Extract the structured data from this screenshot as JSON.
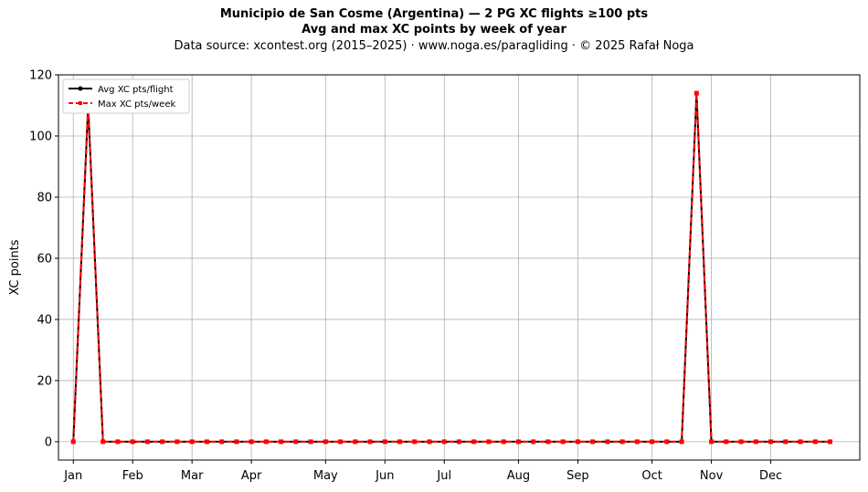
{
  "chart_data": {
    "type": "line",
    "title": "Municipio de San Cosme (Argentina)  —  2 PG XC flights ≥100 pts",
    "subtitle": "Avg and max XC points by week of year",
    "source": "Data source: xcontest.org (2015–2025)  ·  www.noga.es/paragliding  ·  © 2025 Rafał Noga",
    "ylabel": "XC points",
    "xlabel": "",
    "xlim": [
      0,
      54
    ],
    "ylim": [
      -6,
      120
    ],
    "yticks": [
      0,
      20,
      40,
      60,
      80,
      100,
      120
    ],
    "x_ticks": [
      {
        "x": 1,
        "label": "Jan"
      },
      {
        "x": 5,
        "label": "Feb"
      },
      {
        "x": 9,
        "label": "Mar"
      },
      {
        "x": 13,
        "label": "Apr"
      },
      {
        "x": 18,
        "label": "May"
      },
      {
        "x": 22,
        "label": "Jun"
      },
      {
        "x": 26,
        "label": "Jul"
      },
      {
        "x": 31,
        "label": "Aug"
      },
      {
        "x": 35,
        "label": "Sep"
      },
      {
        "x": 40,
        "label": "Oct"
      },
      {
        "x": 44,
        "label": "Nov"
      },
      {
        "x": 48,
        "label": "Dec"
      }
    ],
    "x": [
      1,
      2,
      3,
      4,
      5,
      6,
      7,
      8,
      9,
      10,
      11,
      12,
      13,
      14,
      15,
      16,
      17,
      18,
      19,
      20,
      21,
      22,
      23,
      24,
      25,
      26,
      27,
      28,
      29,
      30,
      31,
      32,
      33,
      34,
      35,
      36,
      37,
      38,
      39,
      40,
      41,
      42,
      43,
      44,
      45,
      46,
      47,
      48,
      49,
      50,
      51,
      52
    ],
    "series": [
      {
        "name": "Avg XC pts/flight",
        "color": "#000000",
        "values": [
          0,
          110,
          0,
          0,
          0,
          0,
          0,
          0,
          0,
          0,
          0,
          0,
          0,
          0,
          0,
          0,
          0,
          0,
          0,
          0,
          0,
          0,
          0,
          0,
          0,
          0,
          0,
          0,
          0,
          0,
          0,
          0,
          0,
          0,
          0,
          0,
          0,
          0,
          0,
          0,
          0,
          0,
          114,
          0,
          0,
          0,
          0,
          0,
          0,
          0,
          0,
          0
        ]
      },
      {
        "name": "Max XC pts/week",
        "color": "#ff0000",
        "values": [
          0,
          110,
          0,
          0,
          0,
          0,
          0,
          0,
          0,
          0,
          0,
          0,
          0,
          0,
          0,
          0,
          0,
          0,
          0,
          0,
          0,
          0,
          0,
          0,
          0,
          0,
          0,
          0,
          0,
          0,
          0,
          0,
          0,
          0,
          0,
          0,
          0,
          0,
          0,
          0,
          0,
          0,
          114,
          0,
          0,
          0,
          0,
          0,
          0,
          0,
          0,
          0
        ]
      }
    ],
    "grid": true,
    "legend": "top-left"
  }
}
